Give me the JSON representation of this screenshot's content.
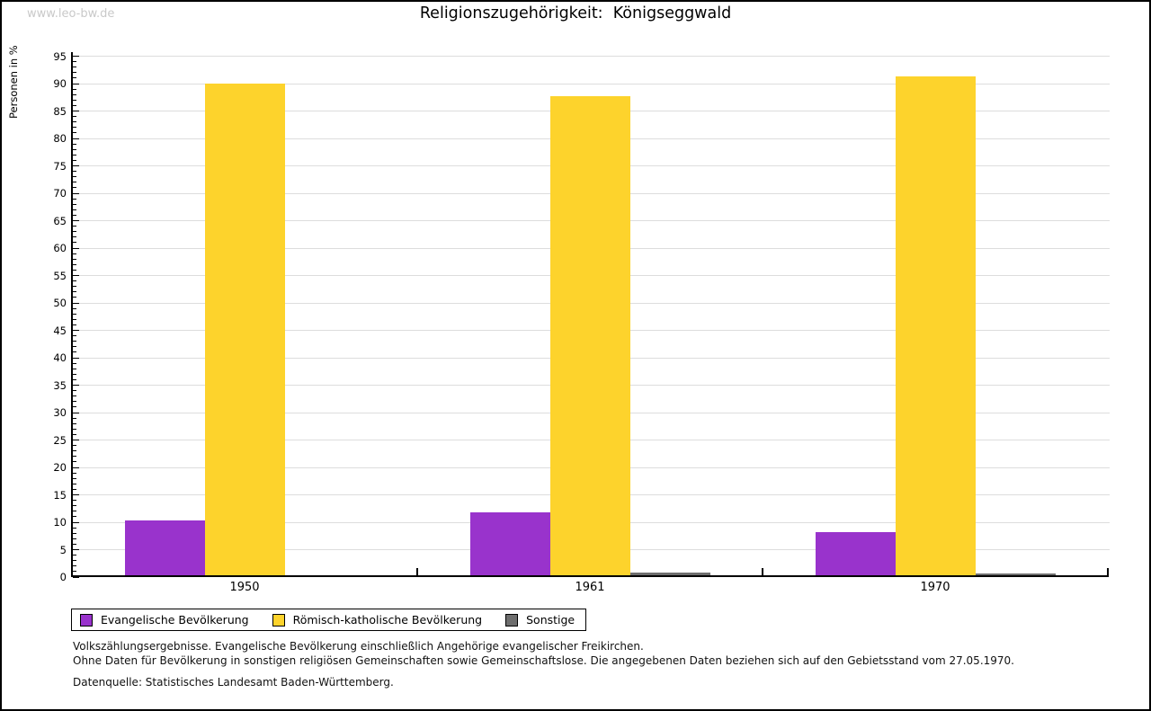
{
  "watermark": "www.leo-bw.de",
  "chart_data": {
    "type": "bar",
    "title": "Religionszugehörigkeit:  Königseggwald",
    "categories": [
      "1950",
      "1961",
      "1970"
    ],
    "series": [
      {
        "name": "Evangelische Bevölkerung",
        "color": "#9933CC",
        "values": [
          10.3,
          11.8,
          8.2
        ]
      },
      {
        "name": "Römisch-katholische Bevölkerung",
        "color": "#FDD32C",
        "values": [
          90.0,
          87.7,
          91.3
        ]
      },
      {
        "name": "Sonstige",
        "color": "#6E6E6E",
        "values": [
          0.0,
          0.9,
          0.7
        ]
      }
    ],
    "xlabel": "",
    "ylabel": "Personen in %",
    "ylim": [
      0,
      95
    ],
    "ytick_step": 5,
    "minor_tick_step": 1,
    "grid": true,
    "gridline_color": "#dddddd",
    "legend_position": "bottom"
  },
  "footnotes": {
    "line1": "Volkszählungsergebnisse. Evangelische Bevölkerung einschließlich Angehörige evangelischer Freikirchen.",
    "line2": "Ohne Daten für Bevölkerung in sonstigen religiösen Gemeinschaften sowie Gemeinschaftslose. Die angegebenen Daten beziehen sich auf den Gebietsstand vom 27.05.1970.",
    "source": "Datenquelle: Statistisches Landesamt Baden-Württemberg."
  }
}
